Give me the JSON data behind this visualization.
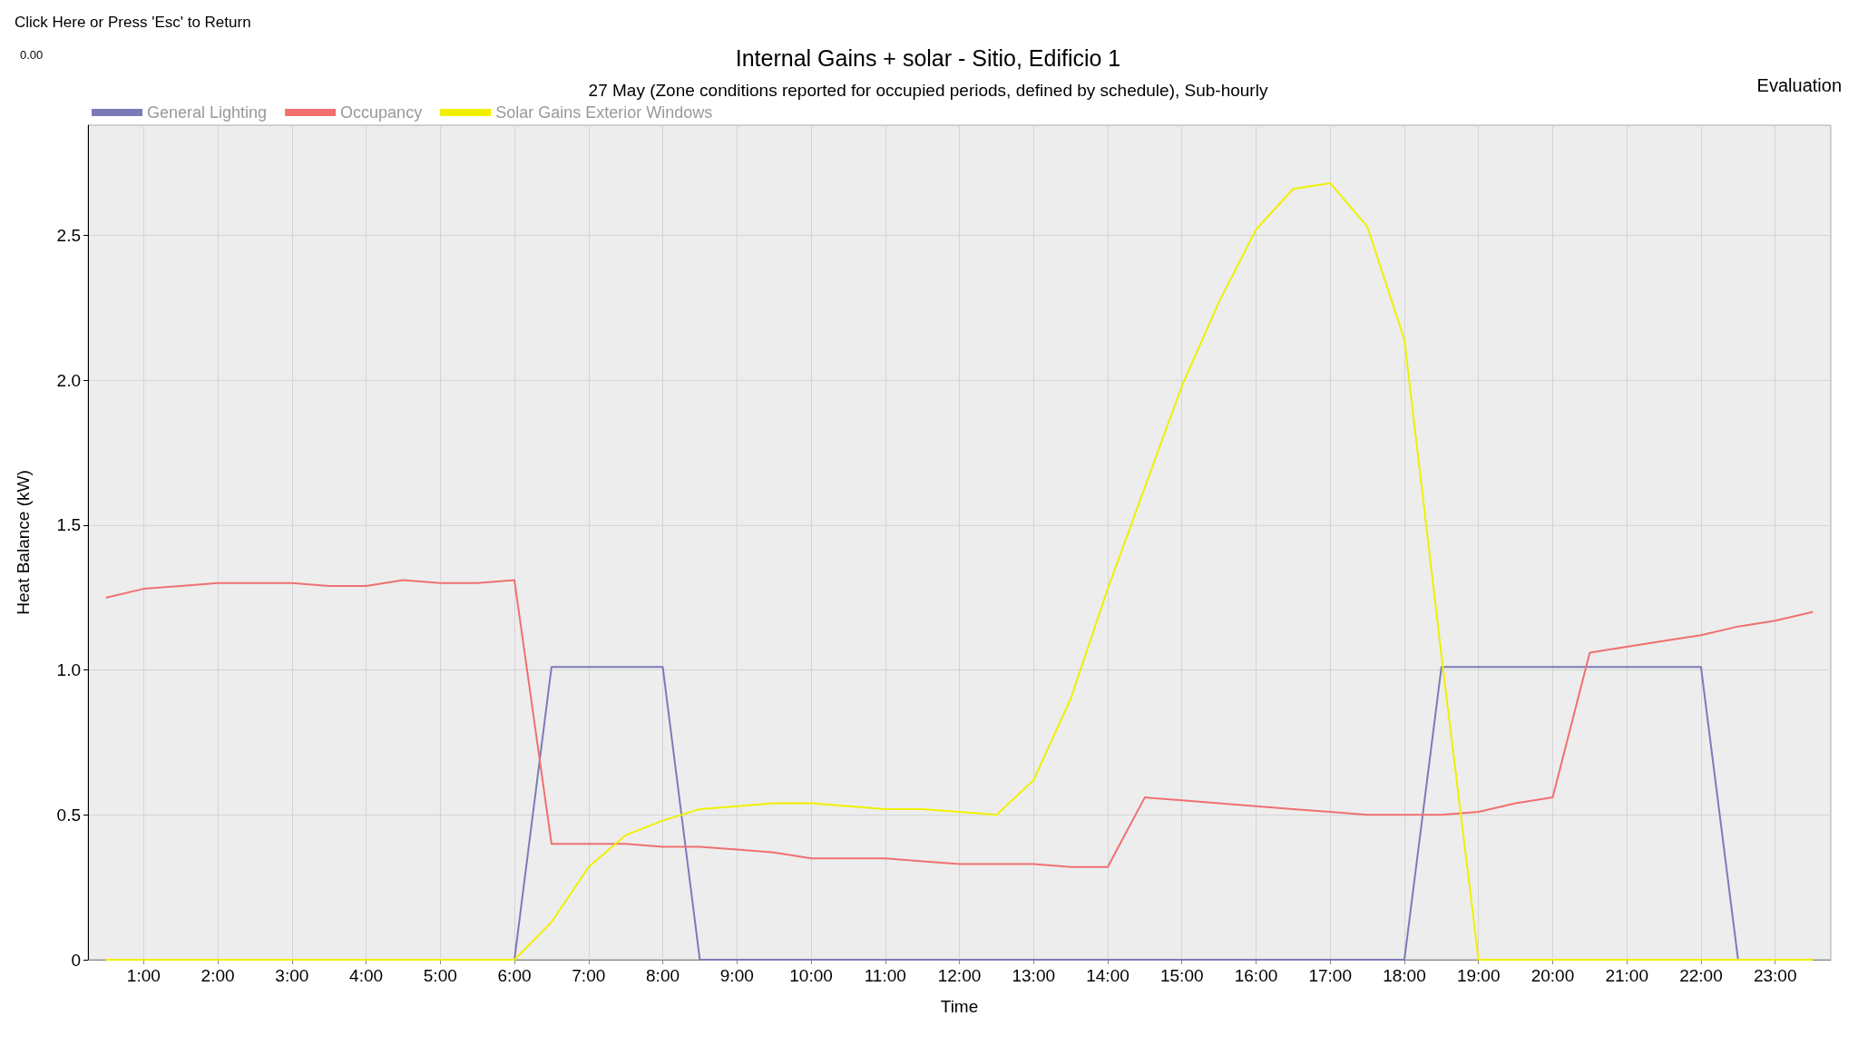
{
  "chart_data": {
    "type": "line",
    "title": "Internal Gains + solar - Sitio, Edificio 1",
    "subtitle": "27 May (Zone conditions reported for occupied periods, defined by schedule), Sub-hourly",
    "xlabel": "Time",
    "ylabel": "Heat Balance (kW)",
    "annotations": [
      "Click Here or Press 'Esc' to Return",
      "0.00",
      "Evaluation"
    ],
    "x": [
      0.5,
      1,
      1.5,
      2,
      2.5,
      3,
      3.5,
      4,
      4.5,
      5,
      5.5,
      6,
      6.5,
      7,
      7.5,
      8,
      8.5,
      9,
      9.5,
      10,
      10.5,
      11,
      11.5,
      12,
      12.5,
      13,
      13.5,
      14,
      14.5,
      15,
      15.5,
      16,
      16.5,
      17,
      17.5,
      18,
      18.5,
      19,
      19.5,
      20,
      20.5,
      21,
      21.5,
      22,
      22.5,
      23,
      23.5
    ],
    "series": [
      {
        "name": "General Lighting",
        "color": "#7b7bb8",
        "values": [
          null,
          null,
          null,
          null,
          null,
          null,
          null,
          null,
          null,
          null,
          null,
          0,
          1.01,
          1.01,
          1.01,
          1.01,
          0,
          0,
          0,
          0,
          0,
          0,
          0,
          0,
          0,
          0,
          0,
          0,
          0,
          0,
          0,
          0,
          0,
          0,
          0,
          0,
          1.01,
          1.01,
          1.01,
          1.01,
          1.01,
          1.01,
          1.01,
          1.01,
          0,
          null,
          null
        ]
      },
      {
        "name": "Occupancy",
        "color": "#f07070",
        "values": [
          1.25,
          1.28,
          1.29,
          1.3,
          1.3,
          1.3,
          1.29,
          1.29,
          1.31,
          1.3,
          1.3,
          1.31,
          0.4,
          0.4,
          0.4,
          0.39,
          0.39,
          0.38,
          0.37,
          0.35,
          0.35,
          0.35,
          0.34,
          0.33,
          0.33,
          0.33,
          0.32,
          0.32,
          0.56,
          0.55,
          0.54,
          0.53,
          0.52,
          0.51,
          0.5,
          0.5,
          0.5,
          0.51,
          0.54,
          0.56,
          1.06,
          1.08,
          1.1,
          1.12,
          1.15,
          1.17,
          1.2
        ]
      },
      {
        "name": "Solar Gains Exterior Windows",
        "color": "#f0f000",
        "values": [
          0,
          0,
          0,
          0,
          0,
          0,
          0,
          0,
          0,
          0,
          0,
          0,
          0.13,
          0.32,
          0.43,
          0.48,
          0.52,
          0.53,
          0.54,
          0.54,
          0.53,
          0.52,
          0.52,
          0.51,
          0.5,
          0.62,
          0.9,
          1.28,
          1.63,
          1.98,
          2.27,
          2.52,
          2.66,
          2.68,
          2.53,
          2.14,
          1.05,
          0,
          0,
          0,
          0,
          0,
          0,
          0,
          0,
          0,
          0
        ]
      }
    ],
    "xlim": [
      0.25,
      23.75
    ],
    "xticks": [
      {
        "value": 1,
        "label": "1:00"
      },
      {
        "value": 2,
        "label": "2:00"
      },
      {
        "value": 3,
        "label": "3:00"
      },
      {
        "value": 4,
        "label": "4:00"
      },
      {
        "value": 5,
        "label": "5:00"
      },
      {
        "value": 6,
        "label": "6:00"
      },
      {
        "value": 7,
        "label": "7:00"
      },
      {
        "value": 8,
        "label": "8:00"
      },
      {
        "value": 9,
        "label": "9:00"
      },
      {
        "value": 10,
        "label": "10:00"
      },
      {
        "value": 11,
        "label": "11:00"
      },
      {
        "value": 12,
        "label": "12:00"
      },
      {
        "value": 13,
        "label": "13:00"
      },
      {
        "value": 14,
        "label": "14:00"
      },
      {
        "value": 15,
        "label": "15:00"
      },
      {
        "value": 16,
        "label": "16:00"
      },
      {
        "value": 17,
        "label": "17:00"
      },
      {
        "value": 18,
        "label": "18:00"
      },
      {
        "value": 19,
        "label": "19:00"
      },
      {
        "value": 20,
        "label": "20:00"
      },
      {
        "value": 21,
        "label": "21:00"
      },
      {
        "value": 22,
        "label": "22:00"
      },
      {
        "value": 23,
        "label": "23:00"
      }
    ],
    "ylim": [
      0,
      2.88
    ],
    "yticks": [
      0,
      0.5,
      {
        "value": 1,
        "label": "1.0"
      },
      1.5,
      {
        "value": 2,
        "label": "2.0"
      },
      2.5
    ],
    "grid": true,
    "legend": "top left",
    "marker": "none",
    "line_style": "solid"
  }
}
